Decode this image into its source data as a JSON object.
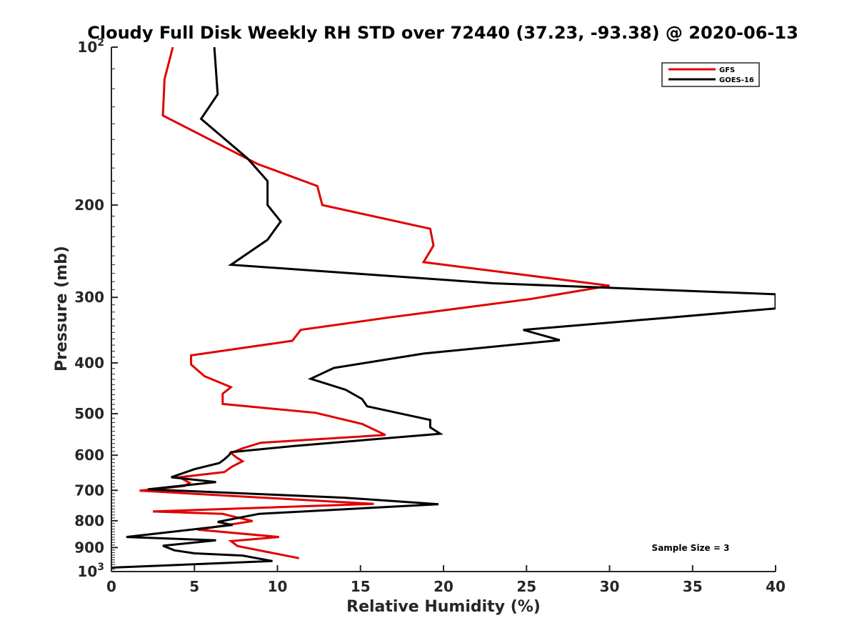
{
  "chart_data": {
    "type": "line",
    "title": "Cloudy Full Disk Weekly RH STD over 72440 (37.23, -93.38) @ 2020-06-13",
    "xlabel": "Relative Humidity (%)",
    "ylabel": "Pressure (mb)",
    "xlim": [
      0,
      40
    ],
    "ylim": [
      100,
      1000
    ],
    "yscale": "log",
    "y_reversed": true,
    "grid": false,
    "legend_position": "top-right",
    "x_ticks": [
      0,
      5,
      10,
      15,
      20,
      25,
      30,
      35,
      40
    ],
    "x_tick_labels": [
      "0",
      "5",
      "10",
      "15",
      "20",
      "25",
      "30",
      "35",
      "40"
    ],
    "y_ticks": [
      100,
      200,
      300,
      400,
      500,
      600,
      700,
      800,
      900,
      1000
    ],
    "y_tick_labels": [
      {
        "base": "10",
        "exp": "2"
      },
      {
        "text": "200"
      },
      {
        "text": "300"
      },
      {
        "text": "400"
      },
      {
        "text": "500"
      },
      {
        "text": "600"
      },
      {
        "text": "700"
      },
      {
        "text": "800"
      },
      {
        "text": "900"
      },
      {
        "base": "10",
        "exp": "3"
      }
    ],
    "annotation": "Sample Size = 3",
    "series": [
      {
        "name": "GFS",
        "color": "#e00000",
        "points": [
          [
            3.7,
            100
          ],
          [
            3.2,
            115
          ],
          [
            3.1,
            135
          ],
          [
            8.8,
            167
          ],
          [
            12.4,
            184
          ],
          [
            12.7,
            200
          ],
          [
            19.2,
            222
          ],
          [
            19.4,
            239
          ],
          [
            18.8,
            257
          ],
          [
            30.0,
            285
          ],
          [
            25.3,
            302
          ],
          [
            16.6,
            328
          ],
          [
            11.4,
            346
          ],
          [
            10.9,
            363
          ],
          [
            4.8,
            387
          ],
          [
            4.8,
            403
          ],
          [
            5.6,
            424
          ],
          [
            7.2,
            445
          ],
          [
            6.7,
            458
          ],
          [
            6.7,
            479
          ],
          [
            12.3,
            498
          ],
          [
            15.1,
            523
          ],
          [
            16.5,
            549
          ],
          [
            9.0,
            568
          ],
          [
            7.9,
            582
          ],
          [
            7.2,
            594
          ],
          [
            7.5,
            605
          ],
          [
            7.9,
            616
          ],
          [
            7.3,
            630
          ],
          [
            6.8,
            646
          ],
          [
            4.1,
            661
          ],
          [
            4.7,
            677
          ],
          [
            4.4,
            687
          ],
          [
            1.7,
            701
          ],
          [
            15.8,
            743
          ],
          [
            2.5,
            768
          ],
          [
            6.7,
            776
          ],
          [
            7.7,
            790
          ],
          [
            8.5,
            801
          ],
          [
            5.2,
            832
          ],
          [
            10.1,
            859
          ],
          [
            7.2,
            875
          ],
          [
            7.6,
            894
          ],
          [
            11.3,
            943
          ]
        ]
      },
      {
        "name": "GOES-16",
        "color": "#000000",
        "points": [
          [
            6.2,
            100
          ],
          [
            6.4,
            123
          ],
          [
            5.4,
            137
          ],
          [
            8.2,
            163
          ],
          [
            9.4,
            180
          ],
          [
            9.4,
            200
          ],
          [
            10.2,
            215
          ],
          [
            9.4,
            233
          ],
          [
            7.2,
            260
          ],
          [
            23.0,
            282
          ],
          [
            40.0,
            296
          ],
          [
            40.0,
            315
          ],
          [
            33.5,
            328
          ],
          [
            24.8,
            346
          ],
          [
            27.0,
            362
          ],
          [
            18.8,
            384
          ],
          [
            13.4,
            409
          ],
          [
            12.0,
            429
          ],
          [
            14.1,
            450
          ],
          [
            15.1,
            469
          ],
          [
            15.4,
            484
          ],
          [
            19.2,
            514
          ],
          [
            19.2,
            531
          ],
          [
            19.8,
            546
          ],
          [
            11.0,
            576
          ],
          [
            7.2,
            592
          ],
          [
            7.1,
            599
          ],
          [
            6.8,
            611
          ],
          [
            6.5,
            621
          ],
          [
            5.0,
            638
          ],
          [
            3.6,
            661
          ],
          [
            6.3,
            675
          ],
          [
            2.2,
            697
          ],
          [
            14.0,
            723
          ],
          [
            19.7,
            744
          ],
          [
            8.9,
            776
          ],
          [
            6.4,
            804
          ],
          [
            7.3,
            815
          ],
          [
            0.9,
            859
          ],
          [
            6.3,
            872
          ],
          [
            3.1,
            893
          ],
          [
            3.8,
            911
          ],
          [
            5.0,
            923
          ],
          [
            7.9,
            932
          ],
          [
            9.7,
            955
          ],
          [
            0.0,
            983
          ]
        ]
      }
    ]
  }
}
